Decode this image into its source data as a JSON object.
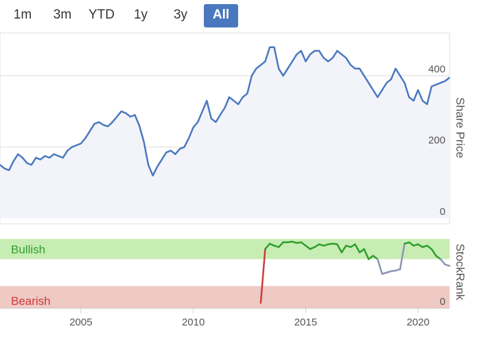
{
  "range_selector": {
    "buttons": [
      {
        "label": "1m",
        "active": false
      },
      {
        "label": "3m",
        "active": false
      },
      {
        "label": "YTD",
        "active": false
      },
      {
        "label": "1y",
        "active": false
      },
      {
        "label": "3y",
        "active": false
      },
      {
        "label": "All",
        "active": true
      }
    ]
  },
  "colors": {
    "price_line": "#4a78bf",
    "price_fill": "#f3f4fa",
    "bullish_band": "#c8edb4",
    "bearish_band": "#efc9c4",
    "bullish_line": "#2e9e2e",
    "bearish_line": "#cf3a3a",
    "neutral_line": "#8a94b4",
    "grid": "#dcdcdc"
  },
  "chart_data": [
    {
      "type": "area",
      "ylabel": "Share Price",
      "ylim": [
        0,
        520
      ],
      "yticks": [
        0,
        200,
        400
      ],
      "xlim": [
        2001.4,
        2021.4
      ],
      "xticks": [
        2005,
        2010,
        2015,
        2020
      ],
      "grid": true,
      "series": [
        {
          "x": [
            2001.4,
            2001.6,
            2001.8,
            2002.0,
            2002.2,
            2002.4,
            2002.6,
            2002.8,
            2003.0,
            2003.2,
            2003.4,
            2003.6,
            2003.8,
            2004.0,
            2004.2,
            2004.4,
            2004.6,
            2004.8,
            2005.0,
            2005.2,
            2005.4,
            2005.6,
            2005.8,
            2006.0,
            2006.2,
            2006.4,
            2006.6,
            2006.8,
            2007.0,
            2007.2,
            2007.4,
            2007.6,
            2007.8,
            2008.0,
            2008.2,
            2008.4,
            2008.6,
            2008.8,
            2009.0,
            2009.2,
            2009.4,
            2009.6,
            2009.8,
            2010.0,
            2010.2,
            2010.4,
            2010.6,
            2010.8,
            2011.0,
            2011.2,
            2011.4,
            2011.6,
            2011.8,
            2012.0,
            2012.2,
            2012.4,
            2012.6,
            2012.8,
            2013.0,
            2013.2,
            2013.4,
            2013.6,
            2013.8,
            2014.0,
            2014.2,
            2014.4,
            2014.6,
            2014.8,
            2015.0,
            2015.2,
            2015.4,
            2015.6,
            2015.8,
            2016.0,
            2016.2,
            2016.4,
            2016.6,
            2016.8,
            2017.0,
            2017.2,
            2017.4,
            2017.6,
            2017.8,
            2018.0,
            2018.2,
            2018.4,
            2018.6,
            2018.8,
            2019.0,
            2019.2,
            2019.4,
            2019.6,
            2019.8,
            2020.0,
            2020.2,
            2020.4,
            2020.6,
            2020.8,
            2021.0,
            2021.2,
            2021.4
          ],
          "values": [
            150,
            140,
            135,
            160,
            180,
            170,
            155,
            150,
            170,
            165,
            175,
            170,
            180,
            175,
            170,
            190,
            200,
            205,
            210,
            225,
            245,
            265,
            270,
            262,
            258,
            270,
            285,
            300,
            295,
            285,
            290,
            260,
            215,
            150,
            120,
            145,
            165,
            185,
            190,
            180,
            195,
            200,
            225,
            255,
            270,
            300,
            330,
            280,
            270,
            290,
            310,
            340,
            330,
            320,
            340,
            350,
            400,
            420,
            430,
            440,
            480,
            480,
            420,
            400,
            420,
            440,
            460,
            470,
            440,
            460,
            470,
            470,
            450,
            440,
            450,
            470,
            460,
            450,
            430,
            420,
            420,
            400,
            380,
            360,
            340,
            360,
            380,
            390,
            420,
            400,
            380,
            340,
            330,
            360,
            330,
            320,
            370,
            375,
            380,
            385,
            395
          ]
        }
      ]
    },
    {
      "type": "line",
      "ylabel": "StockRank",
      "ylim": [
        0,
        100
      ],
      "yticks": [
        0
      ],
      "zones": [
        {
          "label": "Bullish",
          "from": 70,
          "to": 100
        },
        {
          "label": "Bearish",
          "from": 0,
          "to": 30
        }
      ],
      "series": [
        {
          "x": [
            2013.0,
            2013.2,
            2013.4,
            2013.6,
            2013.8,
            2014.0,
            2014.2,
            2014.4,
            2014.6,
            2014.8,
            2015.0,
            2015.2,
            2015.4,
            2015.6,
            2015.8,
            2016.0,
            2016.2,
            2016.4,
            2016.6,
            2016.8,
            2017.0,
            2017.2,
            2017.4,
            2017.6,
            2017.8,
            2018.0,
            2018.2,
            2018.4,
            2018.6,
            2018.8,
            2019.0,
            2019.2,
            2019.4,
            2019.6,
            2019.8,
            2020.0,
            2020.2,
            2020.4,
            2020.6,
            2020.8,
            2021.0,
            2021.2,
            2021.4
          ],
          "values": [
            5,
            85,
            93,
            90,
            88,
            95,
            95,
            96,
            94,
            95,
            90,
            85,
            88,
            92,
            90,
            92,
            93,
            92,
            80,
            90,
            88,
            92,
            80,
            85,
            70,
            75,
            70,
            48,
            50,
            52,
            53,
            55,
            93,
            95,
            90,
            92,
            88,
            90,
            85,
            75,
            70,
            62,
            60
          ]
        }
      ]
    }
  ]
}
